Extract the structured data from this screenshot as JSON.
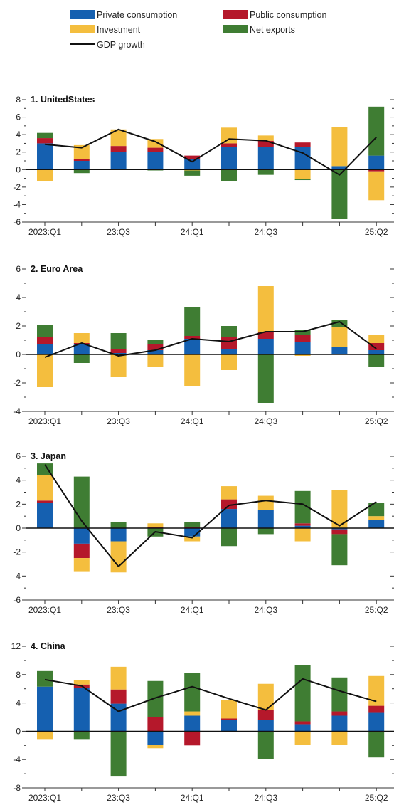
{
  "legend": {
    "entries": [
      {
        "key": "private",
        "label": "Private consumption",
        "color": "#1560b0"
      },
      {
        "key": "public",
        "label": "Public consumption",
        "color": "#b5182b"
      },
      {
        "key": "investment",
        "label": "Investment",
        "color": "#f4be3e"
      },
      {
        "key": "netexports",
        "label": "Net exports",
        "color": "#3f7d33"
      },
      {
        "key": "gdp",
        "label": "GDP growth",
        "color": "#111111"
      }
    ]
  },
  "chart_data": [
    {
      "type": "bar",
      "title": "1. UnitedStates",
      "categories": [
        "2023:Q1",
        "23:Q2",
        "23:Q3",
        "23:Q4",
        "24:Q1",
        "24:Q2",
        "24:Q3",
        "24:Q4",
        "25:Q1",
        "25:Q2"
      ],
      "x_tick_labels": [
        "2023:Q1",
        "",
        "23:Q3",
        "",
        "24:Q1",
        "",
        "24:Q3",
        "",
        "",
        "25:Q2"
      ],
      "ylim": [
        -6,
        8
      ],
      "yticks": [
        -6,
        -4,
        -2,
        0,
        2,
        4,
        6,
        8
      ],
      "series": [
        {
          "name": "Private consumption",
          "values": [
            3.0,
            1.0,
            2.0,
            2.0,
            1.2,
            2.6,
            2.6,
            2.6,
            0.4,
            1.6
          ]
        },
        {
          "name": "Public consumption",
          "values": [
            0.6,
            0.2,
            0.7,
            0.5,
            0.4,
            0.4,
            0.7,
            0.5,
            0.0,
            -0.2
          ]
        },
        {
          "name": "Investment",
          "values": [
            -1.3,
            1.6,
            1.9,
            1.0,
            -0.1,
            1.8,
            0.6,
            -1.1,
            4.5,
            -3.3
          ]
        },
        {
          "name": "Net exports",
          "values": [
            0.6,
            -0.4,
            0.0,
            -0.1,
            -0.6,
            -1.3,
            -0.6,
            -0.1,
            -5.6,
            5.6
          ]
        }
      ],
      "line": {
        "name": "GDP growth",
        "values": [
          2.9,
          2.5,
          4.6,
          3.2,
          0.9,
          3.5,
          3.3,
          1.9,
          -0.6,
          3.7
        ]
      }
    },
    {
      "type": "bar",
      "title": "2. Euro Area",
      "categories": [
        "2023:Q1",
        "23:Q2",
        "23:Q3",
        "23:Q4",
        "24:Q1",
        "24:Q2",
        "24:Q3",
        "24:Q4",
        "25:Q1",
        "25:Q2"
      ],
      "x_tick_labels": [
        "2023:Q1",
        "",
        "23:Q3",
        "",
        "24:Q1",
        "",
        "24:Q3",
        "",
        "",
        "25:Q2"
      ],
      "ylim": [
        -4,
        6
      ],
      "yticks": [
        -4,
        -2,
        0,
        2,
        4,
        6
      ],
      "series": [
        {
          "name": "Private consumption",
          "values": [
            0.7,
            0.7,
            0.1,
            0.3,
            1.1,
            0.4,
            1.1,
            0.9,
            0.5,
            0.3
          ]
        },
        {
          "name": "Public consumption",
          "values": [
            0.5,
            0.1,
            0.3,
            0.4,
            0.2,
            0.8,
            0.5,
            0.5,
            0.0,
            0.5
          ]
        },
        {
          "name": "Investment",
          "values": [
            -2.3,
            0.7,
            -1.6,
            -0.9,
            -2.2,
            -1.1,
            3.2,
            -0.1,
            1.4,
            0.6
          ]
        },
        {
          "name": "Net exports",
          "values": [
            0.9,
            -0.6,
            1.1,
            0.3,
            2.0,
            0.8,
            -3.4,
            0.3,
            0.5,
            -0.9
          ]
        }
      ],
      "line": {
        "name": "GDP growth",
        "values": [
          -0.2,
          0.8,
          -0.1,
          0.3,
          1.1,
          0.9,
          1.6,
          1.6,
          2.3,
          0.4
        ]
      }
    },
    {
      "type": "bar",
      "title": "3. Japan",
      "categories": [
        "2023:Q1",
        "23:Q2",
        "23:Q3",
        "23:Q4",
        "24:Q1",
        "24:Q2",
        "24:Q3",
        "24:Q4",
        "25:Q1",
        "25:Q2"
      ],
      "x_tick_labels": [
        "2023:Q1",
        "",
        "23:Q3",
        "",
        "24:Q1",
        "",
        "24:Q3",
        "",
        "",
        "25:Q2"
      ],
      "ylim": [
        -6,
        6
      ],
      "yticks": [
        -6,
        -4,
        -2,
        0,
        2,
        4,
        6
      ],
      "series": [
        {
          "name": "Private consumption",
          "values": [
            2.1,
            -1.3,
            -1.1,
            0.0,
            -0.7,
            1.6,
            1.5,
            0.2,
            -0.1,
            0.7
          ]
        },
        {
          "name": "Public consumption",
          "values": [
            0.2,
            -1.2,
            0.0,
            0.1,
            0.1,
            0.8,
            0.0,
            0.2,
            -0.4,
            0.0
          ]
        },
        {
          "name": "Investment",
          "values": [
            2.1,
            -1.1,
            -2.6,
            0.3,
            -0.4,
            1.1,
            1.2,
            -1.1,
            3.2,
            0.3
          ]
        },
        {
          "name": "Net exports",
          "values": [
            1.0,
            4.3,
            0.5,
            -0.7,
            0.4,
            -1.5,
            -0.5,
            2.7,
            -2.6,
            1.1
          ]
        }
      ],
      "line": {
        "name": "GDP growth",
        "values": [
          5.3,
          0.6,
          -3.2,
          -0.3,
          -0.8,
          1.9,
          2.3,
          2.0,
          0.2,
          2.2
        ]
      }
    },
    {
      "type": "bar",
      "title": "4. China",
      "categories": [
        "2023:Q1",
        "23:Q2",
        "23:Q3",
        "23:Q4",
        "24:Q1",
        "24:Q2",
        "24:Q3",
        "24:Q4",
        "25:Q1",
        "25:Q2"
      ],
      "x_tick_labels": [
        "2023:Q1",
        "",
        "23:Q3",
        "",
        "24:Q1",
        "",
        "24:Q3",
        "",
        "",
        "25:Q2"
      ],
      "ylim": [
        -8,
        12
      ],
      "yticks": [
        -8,
        -4,
        0,
        4,
        8,
        12
      ],
      "series": [
        {
          "name": "Private consumption",
          "values": [
            6.3,
            6.1,
            3.9,
            -1.9,
            2.2,
            1.6,
            1.6,
            1.0,
            2.2,
            2.6
          ]
        },
        {
          "name": "Public consumption",
          "values": [
            0.0,
            0.5,
            2.0,
            2.0,
            -2.0,
            0.2,
            1.4,
            0.4,
            0.6,
            1.0
          ]
        },
        {
          "name": "Investment",
          "values": [
            -1.1,
            0.6,
            3.2,
            -0.5,
            0.6,
            2.6,
            3.7,
            -1.9,
            -1.9,
            4.2
          ]
        },
        {
          "name": "Net exports",
          "values": [
            2.2,
            -1.1,
            -6.3,
            5.1,
            5.4,
            0.0,
            -3.9,
            7.9,
            4.8,
            -3.7
          ]
        }
      ],
      "line": {
        "name": "GDP growth",
        "values": [
          7.3,
          6.4,
          2.8,
          4.7,
          6.3,
          4.6,
          3.0,
          7.4,
          5.7,
          4.2
        ]
      }
    }
  ]
}
